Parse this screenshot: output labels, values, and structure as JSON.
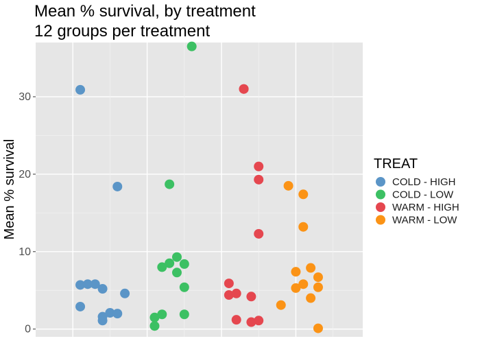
{
  "chart_data": {
    "type": "scatter",
    "title": "Mean % survival, by treatment",
    "subtitle": "12 groups per treatment",
    "xlabel": "",
    "ylabel": "Mean % survival",
    "ylim": [
      -1,
      37
    ],
    "yticks": [
      0,
      10,
      20,
      30
    ],
    "grid": true,
    "legend_title": "TREAT",
    "legend_position": "right",
    "series": [
      {
        "name": "COLD - HIGH",
        "color": "#5b95c7",
        "points": [
          [
            0.1,
            30.9
          ],
          [
            0.1,
            5.7
          ],
          [
            0.1,
            2.9
          ],
          [
            0.2,
            5.8
          ],
          [
            0.3,
            5.8
          ],
          [
            0.4,
            1.6
          ],
          [
            0.4,
            1.1
          ],
          [
            0.4,
            5.2
          ],
          [
            0.5,
            2.1
          ],
          [
            0.6,
            2.0
          ],
          [
            0.6,
            18.4
          ],
          [
            0.7,
            4.6
          ]
        ]
      },
      {
        "name": "COLD - LOW",
        "color": "#3cc063",
        "points": [
          [
            1.1,
            0.4
          ],
          [
            1.1,
            1.5
          ],
          [
            1.2,
            1.9
          ],
          [
            1.2,
            8.0
          ],
          [
            1.3,
            8.5
          ],
          [
            1.3,
            18.7
          ],
          [
            1.4,
            7.3
          ],
          [
            1.4,
            9.3
          ],
          [
            1.5,
            8.4
          ],
          [
            1.5,
            1.9
          ],
          [
            1.5,
            5.4
          ],
          [
            1.6,
            36.5
          ]
        ]
      },
      {
        "name": "WARM - HIGH",
        "color": "#e5474f",
        "points": [
          [
            2.1,
            5.9
          ],
          [
            2.1,
            4.4
          ],
          [
            2.2,
            4.6
          ],
          [
            2.2,
            1.2
          ],
          [
            2.3,
            31.0
          ],
          [
            2.3,
            31.0
          ],
          [
            2.4,
            0.9
          ],
          [
            2.4,
            4.2
          ],
          [
            2.5,
            21.0
          ],
          [
            2.5,
            19.3
          ],
          [
            2.5,
            12.3
          ],
          [
            2.5,
            1.1
          ]
        ]
      },
      {
        "name": "WARM - LOW",
        "color": "#fb9316",
        "points": [
          [
            2.8,
            3.1
          ],
          [
            2.9,
            18.5
          ],
          [
            3.0,
            5.3
          ],
          [
            3.0,
            7.4
          ],
          [
            3.1,
            5.8
          ],
          [
            3.1,
            17.4
          ],
          [
            3.1,
            13.2
          ],
          [
            3.2,
            4.0
          ],
          [
            3.2,
            7.9
          ],
          [
            3.3,
            6.7
          ],
          [
            3.3,
            0.1
          ],
          [
            3.3,
            5.4
          ]
        ]
      }
    ]
  }
}
